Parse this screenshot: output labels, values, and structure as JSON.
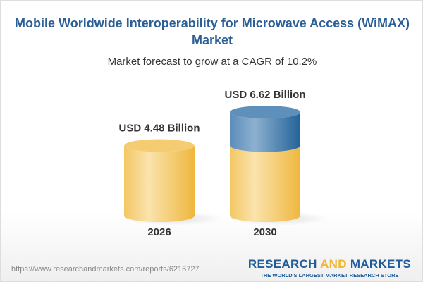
{
  "title": "Mobile Worldwide Interoperability for Microwave Access (WiMAX) Market",
  "subtitle": "Market forecast to grow at a CAGR of 10.2%",
  "chart_data": {
    "type": "bar",
    "style": "3d-cylinder",
    "categories": [
      "2026",
      "2030"
    ],
    "values": [
      4.48,
      6.62
    ],
    "data_labels": [
      "USD 4.48 Billion",
      "USD 6.62 Billion"
    ],
    "colors": {
      "base": "#f2c35a",
      "growth": "#3f78ab"
    }
  },
  "footer": {
    "url": "https://www.researchandmarkets.com/reports/6215727",
    "logo_part1": "RESEARCH ",
    "logo_part2": "AND",
    "logo_part3": " MARKETS",
    "tagline": "THE WORLD'S LARGEST MARKET RESEARCH STORE"
  }
}
